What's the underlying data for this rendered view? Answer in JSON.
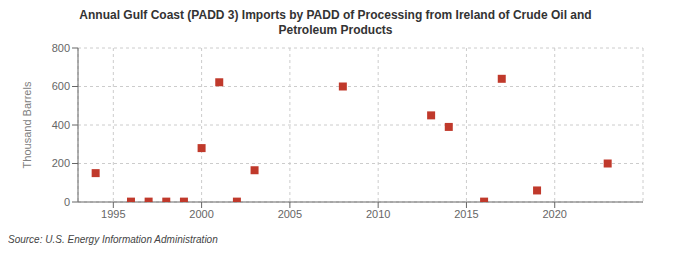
{
  "chart_data": {
    "type": "scatter",
    "title": "Annual Gulf Coast (PADD 3) Imports by PADD of Processing from Ireland of Crude Oil and\nPetroleum Products",
    "y_label": "Thousand Barrels",
    "source": "Source: U.S. Energy Information Administration",
    "x": [
      1994,
      1996,
      1997,
      1998,
      1999,
      2000,
      2001,
      2002,
      2003,
      2008,
      2013,
      2014,
      2016,
      2017,
      2019,
      2023
    ],
    "values": [
      150,
      2,
      2,
      2,
      2,
      280,
      622,
      2,
      165,
      600,
      450,
      390,
      2,
      640,
      60,
      200
    ],
    "color": "#c0392b",
    "marker": "square",
    "xlim": [
      1993,
      2025
    ],
    "ylim": [
      0,
      800
    ],
    "xticks": [
      1995,
      2000,
      2005,
      2010,
      2015,
      2020
    ],
    "yticks": [
      0,
      200,
      400,
      600,
      800
    ],
    "grid": true
  }
}
